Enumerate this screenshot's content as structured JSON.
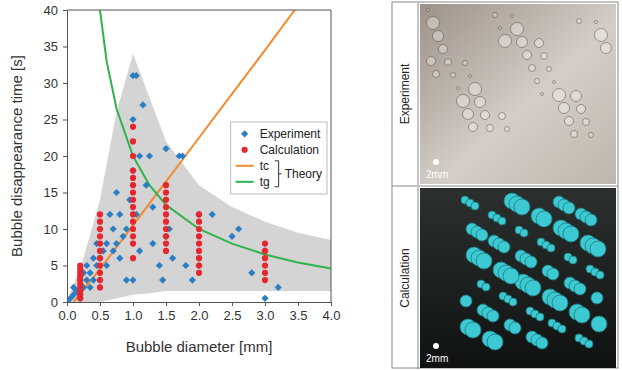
{
  "chart_data": {
    "type": "scatter",
    "xlabel": "Bubble diameter [mm]",
    "ylabel": "Bubble disappearance time [s]",
    "xlim": [
      0,
      4
    ],
    "ylim": [
      0,
      40
    ],
    "xticks": [
      {
        "value": 0,
        "label": "0.0"
      },
      0.5,
      {
        "value": 1,
        "label": "1.0"
      },
      1.5,
      {
        "value": 2,
        "label": "2.0"
      },
      2.5,
      {
        "value": 3,
        "label": "3.0"
      },
      3.5,
      {
        "value": 4,
        "label": "4.0"
      }
    ],
    "yticks": [
      0,
      5,
      10,
      15,
      20,
      25,
      30,
      35,
      40
    ],
    "grid": false,
    "legend": "center right",
    "annotations": [
      {
        "text": "Theory"
      }
    ],
    "series": [
      {
        "type": "area",
        "color": "#d4d4d4",
        "x": [
          0,
          0.25,
          0.5,
          0.75,
          1.0,
          1.25,
          1.5,
          2.0,
          2.5,
          3.0,
          3.5,
          4.0
        ],
        "upper": [
          0,
          6,
          14,
          26,
          34,
          28,
          22,
          16,
          13,
          11,
          9.5,
          8.5
        ],
        "lower": [
          0,
          0,
          0,
          0.5,
          1,
          1.2,
          1.5,
          1.5,
          1.5,
          1.5,
          1.5,
          1.5
        ]
      },
      {
        "name": "Experiment",
        "type": "scatter",
        "marker": "diamond",
        "color": "#2a7fc4",
        "x": [
          0.0,
          0.05,
          0.1,
          0.1,
          0.15,
          0.2,
          0.2,
          0.25,
          0.25,
          0.3,
          0.3,
          0.35,
          0.35,
          0.4,
          0.4,
          0.45,
          0.45,
          0.5,
          0.5,
          0.5,
          0.55,
          0.6,
          0.6,
          0.65,
          0.7,
          0.7,
          0.75,
          0.75,
          0.8,
          0.8,
          0.85,
          0.9,
          0.9,
          0.95,
          1.0,
          1.05,
          1.0,
          1.0,
          1.0,
          1.05,
          1.1,
          1.1,
          1.15,
          1.2,
          1.25,
          1.3,
          1.3,
          1.4,
          1.45,
          1.5,
          1.5,
          1.55,
          1.6,
          1.7,
          1.75,
          1.8,
          1.9,
          2.0,
          2.0,
          2.2,
          2.5,
          2.6,
          2.8,
          3.0,
          3.0,
          3.2
        ],
        "values": [
          0,
          0.5,
          1,
          2,
          1.5,
          3,
          0.5,
          2,
          4,
          3,
          5,
          4,
          2,
          6,
          3,
          5,
          8,
          6,
          10,
          3,
          7,
          8,
          5,
          12,
          7,
          10,
          8,
          15,
          6,
          12,
          9,
          10,
          3,
          14,
          31,
          31,
          18,
          25,
          3,
          12,
          20,
          7,
          27,
          16,
          20,
          13,
          8,
          5,
          3,
          21,
          9,
          10,
          6,
          20,
          20,
          5,
          3,
          12,
          5,
          12,
          9,
          10,
          4,
          7,
          0.5,
          2
        ]
      },
      {
        "name": "Calculation",
        "type": "scatter",
        "marker": "circle",
        "color": "#e8262e",
        "x": [
          0.2,
          0.2,
          0.2,
          0.2,
          0.2,
          0.2,
          0.2,
          0.2,
          0.2,
          0.2,
          0.5,
          0.5,
          0.5,
          0.5,
          0.5,
          0.5,
          0.5,
          0.5,
          0.5,
          0.5,
          0.5,
          1.0,
          1.0,
          1.0,
          1.0,
          1.0,
          1.0,
          1.0,
          1.0,
          1.0,
          1.0,
          1.0,
          1.0,
          1.0,
          1.0,
          1.0,
          1.5,
          1.5,
          1.5,
          1.5,
          1.5,
          1.5,
          1.5,
          1.5,
          1.5,
          1.5,
          2.0,
          2.0,
          2.0,
          2.0,
          2.0,
          2.0,
          2.0,
          2.0,
          2.0,
          3.0,
          3.0,
          3.0,
          3.0,
          3.0,
          3.0
        ],
        "values": [
          0.5,
          1,
          1.5,
          2,
          2.5,
          3,
          3.5,
          4,
          4.5,
          5,
          2,
          3,
          4,
          5,
          6,
          7,
          8,
          9,
          10,
          11,
          12,
          6,
          8,
          9,
          10,
          11,
          12,
          13,
          14,
          15,
          16,
          17,
          18,
          20,
          22,
          24,
          7,
          8,
          9,
          10,
          11,
          12,
          13,
          14,
          15,
          16,
          4,
          5,
          6,
          7,
          8,
          9,
          10,
          11,
          12,
          3,
          4,
          5,
          6,
          7,
          8
        ]
      },
      {
        "name": "tc",
        "type": "line",
        "line_style": "solid",
        "color": "#f28a30",
        "x": [
          0.1,
          0.5,
          1.0,
          1.5,
          2.0,
          2.5,
          3.0,
          3.45
        ],
        "values": [
          0,
          4.5,
          10.5,
          16.5,
          22.5,
          28.5,
          34.5,
          40
        ]
      },
      {
        "name": "tg",
        "type": "line",
        "line_style": "solid",
        "color": "#2fb34b",
        "x": [
          0.5,
          0.6,
          0.75,
          1.0,
          1.25,
          1.5,
          2.0,
          2.5,
          3.0,
          3.5,
          4.0
        ],
        "values": [
          40,
          33,
          26.5,
          20,
          16,
          13.3,
          10,
          8,
          6.5,
          5.4,
          4.6
        ]
      }
    ]
  },
  "panels": [
    {
      "label": "Experiment",
      "scale_bar": "2mm"
    },
    {
      "label": "Calculation",
      "scale_bar": "2mm"
    }
  ]
}
